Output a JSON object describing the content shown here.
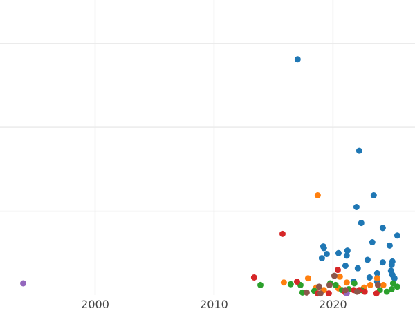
{
  "chart_data": {
    "type": "scatter",
    "title": "",
    "xlabel": "",
    "ylabel": "",
    "xlim": [
      1992,
      2026.9
    ],
    "ylim": [
      0,
      3.5
    ],
    "x_ticks": [
      2000,
      2010,
      2020
    ],
    "x_tick_labels": [
      "2000",
      "2010",
      "2020"
    ],
    "y_gridlines": [
      1,
      2,
      3
    ],
    "grid": true,
    "series": [
      {
        "color": "#1f77b4",
        "points": [
          [
            2017.03,
            2.81
          ],
          [
            2022.21,
            1.72
          ],
          [
            2023.43,
            1.19
          ],
          [
            2021.98,
            1.05
          ],
          [
            2022.38,
            0.86
          ],
          [
            2024.19,
            0.8
          ],
          [
            2025.41,
            0.71
          ],
          [
            2023.31,
            0.63
          ],
          [
            2024.77,
            0.59
          ],
          [
            2019.19,
            0.58
          ],
          [
            2019.24,
            0.56
          ],
          [
            2019.48,
            0.49
          ],
          [
            2020.47,
            0.5
          ],
          [
            2021.22,
            0.53
          ],
          [
            2021.16,
            0.47
          ],
          [
            2019.07,
            0.44
          ],
          [
            2022.91,
            0.42
          ],
          [
            2025.0,
            0.4
          ],
          [
            2024.94,
            0.36
          ],
          [
            2024.19,
            0.39
          ],
          [
            2021.05,
            0.35
          ],
          [
            2022.09,
            0.32
          ],
          [
            2024.88,
            0.29
          ],
          [
            2023.72,
            0.26
          ],
          [
            2025.0,
            0.24
          ],
          [
            2025.17,
            0.2
          ],
          [
            2023.08,
            0.21
          ],
          [
            2021.74,
            0.16
          ],
          [
            2023.72,
            0.16
          ]
        ]
      },
      {
        "color": "#ff7f0e",
        "points": [
          [
            2018.72,
            1.19
          ],
          [
            2015.87,
            0.15
          ],
          [
            2017.91,
            0.2
          ],
          [
            2020.58,
            0.22
          ],
          [
            2023.72,
            0.2
          ],
          [
            2018.6,
            0.09
          ],
          [
            2021.16,
            0.15
          ],
          [
            2023.14,
            0.12
          ],
          [
            2022.62,
            0.09
          ],
          [
            2024.24,
            0.12
          ],
          [
            2020.47,
            0.08
          ],
          [
            2019.24,
            0.06
          ]
        ]
      },
      {
        "color": "#2ca02c",
        "points": [
          [
            2013.9,
            0.12
          ],
          [
            2016.45,
            0.13
          ],
          [
            2017.27,
            0.12
          ],
          [
            2017.44,
            0.03
          ],
          [
            2018.43,
            0.05
          ],
          [
            2019.77,
            0.14
          ],
          [
            2020.23,
            0.12
          ],
          [
            2021.8,
            0.14
          ],
          [
            2022.38,
            0.06
          ],
          [
            2023.95,
            0.06
          ],
          [
            2024.53,
            0.04
          ],
          [
            2024.94,
            0.07
          ],
          [
            2025.06,
            0.14
          ],
          [
            2025.41,
            0.1
          ],
          [
            2020.76,
            0.06
          ],
          [
            2021.34,
            0.07
          ]
        ]
      },
      {
        "color": "#d62728",
        "points": [
          [
            2015.76,
            0.73
          ],
          [
            2013.37,
            0.21
          ],
          [
            2016.98,
            0.16
          ],
          [
            2020.41,
            0.3
          ],
          [
            2021.74,
            0.06
          ],
          [
            2022.67,
            0.04
          ],
          [
            2023.66,
            0.02
          ],
          [
            2019.65,
            0.02
          ],
          [
            2021.05,
            0.03
          ],
          [
            2022.21,
            0.06
          ],
          [
            2018.72,
            0.02
          ]
        ]
      },
      {
        "color": "#9467bd",
        "points": [
          [
            1993.95,
            0.14
          ],
          [
            2021.16,
            0.02
          ]
        ]
      },
      {
        "color": "#8c564b",
        "points": [
          [
            2020.12,
            0.23
          ],
          [
            2018.84,
            0.1
          ],
          [
            2017.79,
            0.03
          ],
          [
            2019.71,
            0.12
          ],
          [
            2021.05,
            0.06
          ],
          [
            2022.03,
            0.04
          ],
          [
            2023.78,
            0.12
          ],
          [
            2018.95,
            0.02
          ]
        ]
      }
    ]
  }
}
